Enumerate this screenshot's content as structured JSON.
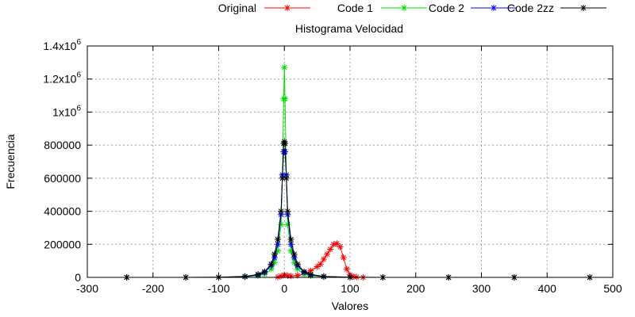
{
  "chart_data": {
    "type": "line",
    "title": "Histograma Velocidad",
    "xlabel": "Valores",
    "ylabel": "Frecuencia",
    "xlim": [
      -300,
      500
    ],
    "ylim": [
      0,
      1400000
    ],
    "grid": true,
    "legend_position": "top, outside plot",
    "x_ticks": [
      {
        "v": -300,
        "label": "-300"
      },
      {
        "v": -200,
        "label": "-200"
      },
      {
        "v": -100,
        "label": "-100"
      },
      {
        "v": 0,
        "label": "0"
      },
      {
        "v": 100,
        "label": "100"
      },
      {
        "v": 200,
        "label": "200"
      },
      {
        "v": 300,
        "label": "300"
      },
      {
        "v": 400,
        "label": "400"
      },
      {
        "v": 500,
        "label": "500"
      }
    ],
    "y_ticks": [
      {
        "v": 0,
        "label": "0"
      },
      {
        "v": 200000,
        "label": "200000"
      },
      {
        "v": 400000,
        "label": "400000"
      },
      {
        "v": 600000,
        "label": "600000"
      },
      {
        "v": 800000,
        "label": "800000"
      },
      {
        "v": 1000000,
        "label": "1x10",
        "sup": "6"
      },
      {
        "v": 1200000,
        "label": "1.2x10",
        "sup": "6"
      },
      {
        "v": 1400000,
        "label": "1.4x10",
        "sup": "6"
      }
    ],
    "series": [
      {
        "name": "Original",
        "color": "#ff0000",
        "marker": "asterisk",
        "x": [
          -10,
          -5,
          0,
          5,
          10,
          20,
          30,
          40,
          50,
          55,
          60,
          65,
          70,
          75,
          80,
          85,
          90,
          95,
          100,
          105,
          110,
          120
        ],
        "y": [
          2000,
          8000,
          15000,
          10000,
          8000,
          12000,
          20000,
          40000,
          65000,
          80000,
          110000,
          140000,
          170000,
          200000,
          205000,
          185000,
          120000,
          50000,
          15000,
          5000,
          2000,
          0
        ]
      },
      {
        "name": "Code 1",
        "color": "#00dd00",
        "marker": "asterisk",
        "x": [
          -240,
          -150,
          -100,
          -60,
          -40,
          -30,
          -20,
          -15,
          -10,
          -5,
          -3,
          -1,
          0,
          1,
          3,
          5,
          10,
          15,
          20,
          30,
          40,
          60,
          100,
          150,
          250,
          350,
          465
        ],
        "y": [
          0,
          0,
          500,
          3000,
          10000,
          20000,
          50000,
          90000,
          160000,
          320000,
          620000,
          1080000,
          1270000,
          1080000,
          620000,
          320000,
          160000,
          90000,
          50000,
          20000,
          10000,
          3000,
          500,
          0,
          0,
          0,
          0
        ]
      },
      {
        "name": "Code 2",
        "color": "#0000ff",
        "marker": "asterisk",
        "x": [
          -240,
          -150,
          -100,
          -60,
          -40,
          -30,
          -20,
          -15,
          -10,
          -5,
          -3,
          -1,
          0,
          1,
          3,
          5,
          10,
          15,
          20,
          30,
          40,
          60,
          100,
          150,
          250,
          350,
          465
        ],
        "y": [
          0,
          0,
          800,
          5000,
          15000,
          30000,
          70000,
          120000,
          200000,
          380000,
          620000,
          760000,
          760000,
          760000,
          620000,
          380000,
          200000,
          120000,
          70000,
          30000,
          15000,
          5000,
          800,
          0,
          0,
          0,
          0
        ]
      },
      {
        "name": "Code 2zz",
        "color": "#000000",
        "marker": "asterisk",
        "x": [
          -240,
          -150,
          -100,
          -60,
          -40,
          -30,
          -20,
          -15,
          -10,
          -5,
          -3,
          -1,
          0,
          1,
          3,
          5,
          10,
          15,
          20,
          30,
          40,
          60,
          100,
          150,
          250,
          350,
          465
        ],
        "y": [
          0,
          0,
          1000,
          6000,
          18000,
          35000,
          80000,
          140000,
          230000,
          400000,
          600000,
          810000,
          820000,
          810000,
          600000,
          400000,
          230000,
          140000,
          80000,
          35000,
          18000,
          6000,
          1000,
          0,
          0,
          0,
          0
        ]
      }
    ]
  }
}
